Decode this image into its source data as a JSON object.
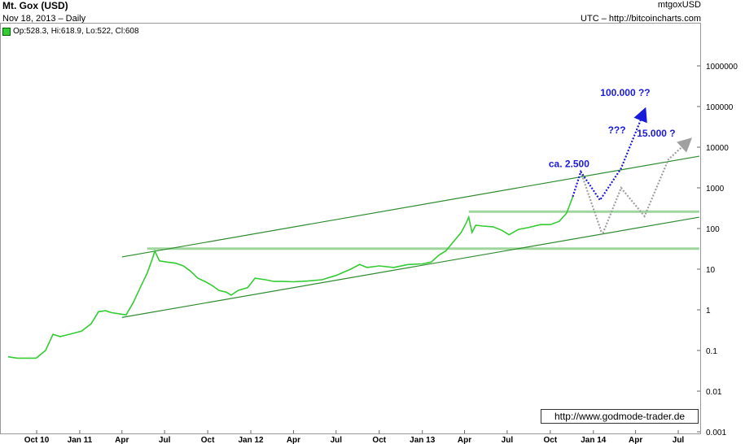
{
  "header": {
    "title": "Mt. Gox (USD)",
    "subtitle": "Nov 18, 2013 – Daily",
    "symbol": "mtgoxUSD",
    "source": "UTC – http://bitcoincharts.com",
    "ohlc": "Op:528.3, Hi:618.9, Lo:522, Cl:608"
  },
  "credit": "http://www.godmode-trader.de",
  "colors": {
    "price": "#33cc33",
    "channel": "#2e8b2e",
    "support": "#9ed69e",
    "projection_blue": "#1a1adb",
    "projection_gray": "#a0a0a0"
  },
  "chart_data": {
    "type": "line",
    "title": "Mt. Gox (USD)",
    "yscale": "log",
    "ylim": [
      0.001,
      1000000
    ],
    "y_ticks": [
      "1000000",
      "100000",
      "10000",
      "1000",
      "100",
      "10",
      "1",
      "0.1",
      "0.01",
      "0.001"
    ],
    "x_ticks": [
      "Oct 10",
      "Jan 11",
      "Apr",
      "Jul",
      "Oct",
      "Jan 12",
      "Apr",
      "Jul",
      "Oct",
      "Jan 13",
      "Apr",
      "Jul",
      "Oct",
      "Jan 14",
      "Apr",
      "Jul"
    ],
    "series": [
      {
        "x": [
          "2010-08-01",
          "2010-08-20",
          "2010-09-10",
          "2010-09-30",
          "2010-10-20",
          "2010-11-05",
          "2010-11-20",
          "2010-12-10",
          "2011-01-05",
          "2011-01-25",
          "2011-02-10",
          "2011-02-25",
          "2011-03-10",
          "2011-03-25",
          "2011-04-10",
          "2011-04-25",
          "2011-05-10",
          "2011-05-25",
          "2011-06-05",
          "2011-06-10",
          "2011-06-20",
          "2011-07-05",
          "2011-07-25",
          "2011-08-10",
          "2011-08-25",
          "2011-09-10",
          "2011-09-25",
          "2011-10-10",
          "2011-10-25",
          "2011-11-10",
          "2011-11-20",
          "2011-12-05",
          "2011-12-25",
          "2012-01-10",
          "2012-02-01",
          "2012-02-20",
          "2012-03-10",
          "2012-04-01",
          "2012-05-01",
          "2012-06-01",
          "2012-07-01",
          "2012-08-01",
          "2012-08-20",
          "2012-09-05",
          "2012-10-01",
          "2012-11-01",
          "2012-12-01",
          "2013-01-01",
          "2013-01-20",
          "2013-02-05",
          "2013-02-20",
          "2013-03-10",
          "2013-03-25",
          "2013-04-05",
          "2013-04-10",
          "2013-04-17",
          "2013-04-25",
          "2013-05-10",
          "2013-06-01",
          "2013-06-20",
          "2013-07-05",
          "2013-07-25",
          "2013-08-15",
          "2013-09-10",
          "2013-10-01",
          "2013-10-20",
          "2013-11-05",
          "2013-11-18"
        ],
        "y": [
          0.07,
          0.065,
          0.065,
          0.065,
          0.1,
          0.25,
          0.22,
          0.25,
          0.3,
          0.45,
          0.9,
          0.95,
          0.85,
          0.8,
          0.75,
          1.5,
          3.5,
          8,
          18,
          28,
          16,
          15,
          14,
          12,
          9,
          6,
          5,
          4,
          3,
          2.7,
          2.3,
          3,
          3.5,
          6,
          5.5,
          5,
          5,
          4.9,
          5.1,
          5.5,
          7,
          10,
          13,
          11,
          12,
          11,
          13,
          13.5,
          15,
          22,
          28,
          50,
          80,
          140,
          190,
          80,
          120,
          115,
          110,
          90,
          70,
          95,
          105,
          125,
          125,
          150,
          240,
          608
        ]
      },
      {
        "name": "ca. 2.500",
        "x": [
          "2013-11-18",
          "2013-12-05",
          "2014-01-15",
          "2014-03-01",
          "2014-04-20"
        ],
        "y": [
          608,
          2500,
          500,
          3000,
          80000
        ]
      },
      {
        "name": "15.000 ?",
        "x": [
          "2013-12-05",
          "2014-01-20",
          "2014-03-01",
          "2014-04-20",
          "2014-06-10",
          "2014-07-25"
        ],
        "y": [
          2500,
          70,
          1000,
          200,
          5000,
          15000
        ]
      }
    ],
    "channel": {
      "upper": {
        "x": [
          "2011-04-01",
          "2014-08-15"
        ],
        "y": [
          20,
          6000
        ]
      },
      "lower": {
        "x": [
          "2011-04-01",
          "2014-08-15"
        ],
        "y": [
          0.65,
          190
        ]
      }
    },
    "support_levels": [
      {
        "x": [
          "2011-05-25",
          "2014-08-15"
        ],
        "y": [
          32,
          32
        ]
      },
      {
        "x": [
          "2013-04-10",
          "2014-08-15"
        ],
        "y": [
          260,
          260
        ]
      }
    ],
    "annotations": [
      {
        "text": "ca. 2.500",
        "x": "2013-11-10",
        "y": 3200
      },
      {
        "text": "100.000 ??",
        "x": "2014-03-10",
        "y": 180000
      },
      {
        "text": "???",
        "x": "2014-02-20",
        "y": 22000
      },
      {
        "text": "15.000 ?",
        "x": "2014-05-15",
        "y": 18000
      }
    ]
  }
}
